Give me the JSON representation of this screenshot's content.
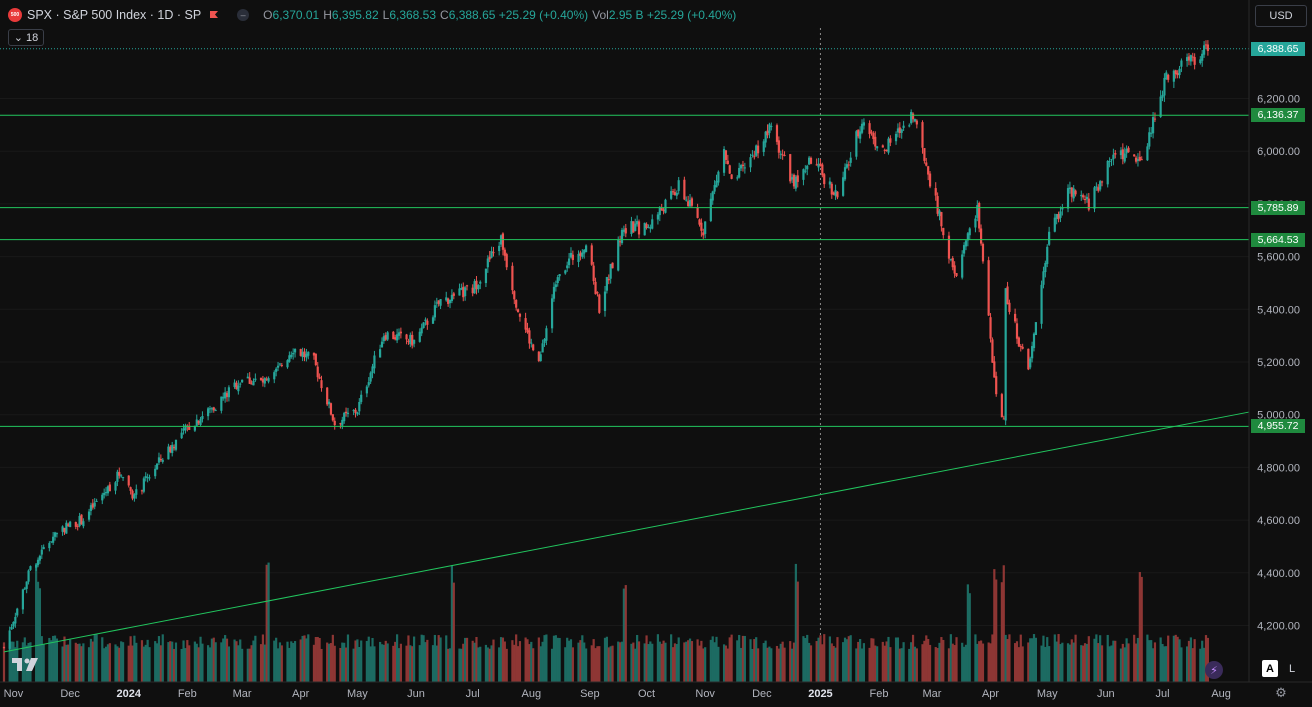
{
  "header": {
    "symbol_badge": "500",
    "title": "SPX · S&P 500 Index · 1D · SP",
    "ohlc": [
      {
        "key": "O",
        "value": "6,370.01"
      },
      {
        "key": "H",
        "value": "6,395.82"
      },
      {
        "key": "L",
        "value": "6,368.53"
      },
      {
        "key": "C",
        "value": "6,388.65 +25.29 (+0.40%)"
      },
      {
        "key": "Vol",
        "value": "2.95 B +25.29 (+0.40%)"
      }
    ],
    "indicator_count": "18",
    "currency": "USD"
  },
  "bottom_buttons": {
    "auto": "A",
    "log": "L"
  },
  "chart_data": {
    "type": "candlestick",
    "symbol": "SPX",
    "interval": "1D",
    "y_range": [
      4050,
      6460
    ],
    "y_ticks": [
      4200,
      4400,
      4600,
      4800,
      5000,
      5200,
      5400,
      5600,
      5800,
      6000,
      6200
    ],
    "y_tick_labels": [
      "4,200.00",
      "4,400.00",
      "4,600.00",
      "4,800.00",
      "5,000.00",
      "5,200.00",
      "5,400.00",
      "5,600.00",
      "5,800.00",
      "6,000.00",
      "6,200.00"
    ],
    "x_labels": [
      "Nov",
      "Dec",
      "2024",
      "Feb",
      "Mar",
      "Apr",
      "May",
      "Jun",
      "Jul",
      "Aug",
      "Sep",
      "Oct",
      "Nov",
      "Dec",
      "2025",
      "Feb",
      "Mar",
      "Apr",
      "May",
      "Jun",
      "Jul",
      "Aug"
    ],
    "x_dates": [
      "2023-11-01",
      "2023-12-01",
      "2024-01-01",
      "2024-02-01",
      "2024-03-01",
      "2024-04-01",
      "2024-05-01",
      "2024-06-01",
      "2024-07-01",
      "2024-08-01",
      "2024-09-01",
      "2024-10-01",
      "2024-11-01",
      "2024-12-01",
      "2025-01-01",
      "2025-02-01",
      "2025-03-01",
      "2025-04-01",
      "2025-05-01",
      "2025-06-01",
      "2025-07-01",
      "2025-08-01"
    ],
    "close_path": [
      [
        "2023-10-27",
        4117
      ],
      [
        "2023-11-10",
        4415
      ],
      [
        "2023-11-24",
        4560
      ],
      [
        "2023-12-08",
        4604
      ],
      [
        "2023-12-28",
        4784
      ],
      [
        "2024-01-04",
        4688
      ],
      [
        "2024-01-19",
        4840
      ],
      [
        "2024-02-02",
        4958
      ],
      [
        "2024-02-15",
        5030
      ],
      [
        "2024-03-01",
        5137
      ],
      [
        "2024-03-15",
        5118
      ],
      [
        "2024-03-28",
        5254
      ],
      [
        "2024-04-08",
        5202
      ],
      [
        "2024-04-19",
        4967
      ],
      [
        "2024-05-01",
        5018
      ],
      [
        "2024-05-15",
        5308
      ],
      [
        "2024-05-31",
        5277
      ],
      [
        "2024-06-14",
        5431
      ],
      [
        "2024-07-01",
        5475
      ],
      [
        "2024-07-16",
        5667
      ],
      [
        "2024-07-25",
        5400
      ],
      [
        "2024-08-05",
        5186
      ],
      [
        "2024-08-15",
        5543
      ],
      [
        "2024-08-30",
        5648
      ],
      [
        "2024-09-06",
        5408
      ],
      [
        "2024-09-19",
        5713
      ],
      [
        "2024-10-01",
        5708
      ],
      [
        "2024-10-18",
        5864
      ],
      [
        "2024-10-31",
        5705
      ],
      [
        "2024-11-11",
        6001
      ],
      [
        "2024-11-15",
        5870
      ],
      [
        "2024-12-06",
        6090
      ],
      [
        "2024-12-18",
        5872
      ],
      [
        "2024-12-27",
        5970
      ],
      [
        "2025-01-10",
        5827
      ],
      [
        "2025-01-23",
        6118
      ],
      [
        "2025-02-03",
        5995
      ],
      [
        "2025-02-19",
        6144
      ],
      [
        "2025-03-04",
        5778
      ],
      [
        "2025-03-13",
        5521
      ],
      [
        "2025-03-25",
        5776
      ],
      [
        "2025-04-04",
        5074
      ],
      [
        "2025-04-08",
        4982
      ],
      [
        "2025-04-09",
        5456
      ],
      [
        "2025-04-21",
        5158
      ],
      [
        "2025-05-02",
        5686
      ],
      [
        "2025-05-12",
        5844
      ],
      [
        "2025-05-23",
        5802
      ],
      [
        "2025-06-06",
        6000
      ],
      [
        "2025-06-20",
        5967
      ],
      [
        "2025-07-03",
        6279
      ],
      [
        "2025-07-25",
        6388.65
      ]
    ],
    "horizontal_levels": [
      {
        "value": 6136.37,
        "label": "6,136.37"
      },
      {
        "value": 5785.89,
        "label": "5,785.89"
      },
      {
        "value": 5664.53,
        "label": "5,664.53"
      },
      {
        "value": 4955.72,
        "label": "4,955.72"
      }
    ],
    "trendline": {
      "start": [
        "2023-10-27",
        4100
      ],
      "end": [
        "2025-08-01",
        5010
      ]
    },
    "last_price": {
      "value": 6388.65,
      "label": "6,388.65"
    },
    "crosshair_date": "2025-01-01",
    "volume": {
      "scale": "relative",
      "peak_dates": [
        "2023-11-14",
        "2024-03-15",
        "2024-06-21",
        "2024-09-20",
        "2024-12-20",
        "2025-03-21",
        "2025-04-04",
        "2025-04-07",
        "2025-06-20"
      ]
    },
    "colors": {
      "up": "#26a69a",
      "down": "#ef5350",
      "levels": "#22c55e",
      "background": "#0f0f0f",
      "grid": "#1c1c1c"
    }
  }
}
